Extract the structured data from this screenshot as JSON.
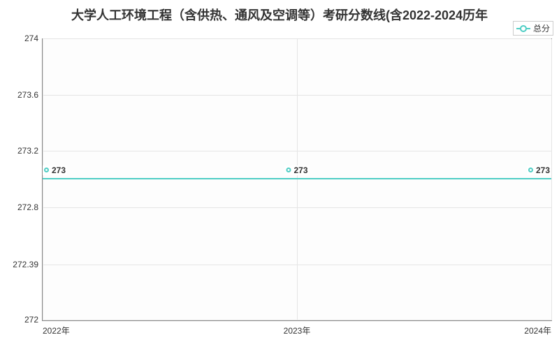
{
  "chart": {
    "type": "line",
    "title": "大学人工环境工程（含供热、通风及空调等）考研分数线(含2022-2024历年",
    "title_fontsize": 18,
    "background_color": "#ffffff",
    "plot_bg_color": "#fdfdfd",
    "grid_color": "#e5e5e5",
    "border_color": "#888888",
    "text_color": "#333333",
    "legend": {
      "label": "总分",
      "position": "top-right"
    },
    "series": {
      "color": "#4ecdc4",
      "line_width": 2,
      "marker_style": "circle-open",
      "marker_size": 7,
      "points": [
        {
          "x": "2022年",
          "y": 273,
          "label": "273"
        },
        {
          "x": "2023年",
          "y": 273,
          "label": "273"
        },
        {
          "x": "2024年",
          "y": 273,
          "label": "273"
        }
      ]
    },
    "x_axis": {
      "categories": [
        "2022年",
        "2023年",
        "2024年"
      ],
      "label_fontsize": 12
    },
    "y_axis": {
      "min": 272,
      "max": 274,
      "ticks": [
        {
          "value": 272,
          "label": "272"
        },
        {
          "value": 272.39,
          "label": "272.39"
        },
        {
          "value": 272.8,
          "label": "272.8"
        },
        {
          "value": 273.2,
          "label": "273.2"
        },
        {
          "value": 273.6,
          "label": "273.6"
        },
        {
          "value": 274,
          "label": "274"
        }
      ],
      "label_fontsize": 12
    }
  }
}
